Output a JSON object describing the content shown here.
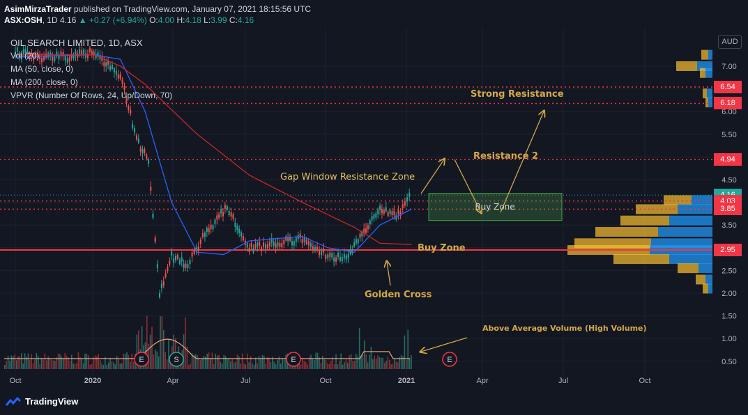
{
  "header": {
    "author": "AsimMirzaTrader",
    "published_text": "published on TradingView.com, January 07, 2021 18:15:56 UTC",
    "symbol": "ASX:OSH",
    "interval": "1D",
    "last": "4.16",
    "change": "+0.27 (+6.94%)",
    "open_label": "O:",
    "open": "4.00",
    "high_label": "H:",
    "high": "4.18",
    "low_label": "L:",
    "low": "3.99",
    "close_label": "C:",
    "close": "4.16"
  },
  "legend": {
    "title": "OIL SEARCH LIMITED, 1D, ASX",
    "vol": "Vol (20)",
    "ma50": "MA (50, close, 0)",
    "ma200": "MA (200, close, 0)",
    "vpvr": "VPVR (Number Of Rows, 24, Up/Down, 70)"
  },
  "currency": "AUD",
  "price_labels": [
    {
      "value": 6.54,
      "text": "6.54",
      "color": "#f23645"
    },
    {
      "value": 6.18,
      "text": "6.18",
      "color": "#f23645"
    },
    {
      "value": 4.94,
      "text": "4.94",
      "color": "#f23645"
    },
    {
      "value": 4.16,
      "text": "4.16",
      "color": "#26a69a"
    },
    {
      "value": 4.03,
      "text": "4.03",
      "color": "#f23645"
    },
    {
      "value": 3.85,
      "text": "3.85",
      "color": "#f23645"
    },
    {
      "value": 2.95,
      "text": "2.95",
      "color": "#f23645"
    }
  ],
  "annotations": {
    "strong_resistance": "Strong Resistance",
    "resistance2": "Resistance 2",
    "gap_zone": "Gap Window Resistance Zone",
    "buy_zone_box": "Buy Zone",
    "buy_zone_line": "Buy Zone",
    "golden_cross": "Golden Cross",
    "high_volume": "Above Average Volume (High Volume)"
  },
  "event_markers": [
    "E",
    "S",
    "E",
    "E"
  ],
  "footer": {
    "brand": "TradingView"
  },
  "chart_data": {
    "type": "line",
    "title": "OIL SEARCH LIMITED, 1D, ASX",
    "x_ticks": [
      "Oct",
      "2020",
      "Apr",
      "Jul",
      "Oct",
      "2021",
      "Apr",
      "Jul",
      "Oct"
    ],
    "y_ticks": [
      0.5,
      1.0,
      1.5,
      2.0,
      2.5,
      3.0,
      3.5,
      4.0,
      4.5,
      5.0,
      5.5,
      6.0,
      6.5,
      7.0
    ],
    "y_tick_labels": [
      "0.50",
      "1.00",
      "1.50",
      "2.00",
      "2.50",
      "3.00",
      "3.50",
      "4.00",
      "4.50",
      "5.00",
      "5.50",
      "6.00",
      "6.50",
      "7.00"
    ],
    "ylim": [
      0.3,
      7.6
    ],
    "grid": true,
    "horizontal_levels": [
      6.54,
      6.18,
      4.94,
      4.03,
      3.85,
      2.95
    ],
    "buy_zone_range": [
      3.6,
      4.2
    ],
    "series": [
      {
        "name": "Close",
        "color": "#d1d4dc",
        "x": [
          "2019-10",
          "2019-11",
          "2019-12",
          "2020-01",
          "2020-02",
          "2020-02-20",
          "2020-03-05",
          "2020-03-18",
          "2020-04-01",
          "2020-04-20",
          "2020-05-10",
          "2020-06-05",
          "2020-07-01",
          "2020-08-01",
          "2020-09-01",
          "2020-10-01",
          "2020-10-25",
          "2020-11-10",
          "2020-12-01",
          "2020-12-20",
          "2021-01-07"
        ],
        "values": [
          7.3,
          7.2,
          7.2,
          7.3,
          6.8,
          5.4,
          4.9,
          2.0,
          2.8,
          2.6,
          3.3,
          3.9,
          3.0,
          3.1,
          3.2,
          2.8,
          2.8,
          3.3,
          3.9,
          3.7,
          4.16
        ]
      },
      {
        "name": "MA 50",
        "color": "#2962ff",
        "x": [
          "2019-10",
          "2020-01",
          "2020-02",
          "2020-03",
          "2020-04",
          "2020-05",
          "2020-06",
          "2020-07",
          "2020-09",
          "2020-10",
          "2020-11",
          "2020-12",
          "2021-01-07"
        ],
        "values": [
          7.2,
          7.25,
          7.15,
          6.0,
          4.0,
          2.9,
          2.85,
          3.15,
          3.25,
          3.0,
          2.9,
          3.5,
          3.85
        ]
      },
      {
        "name": "MA 200",
        "color": "#c62828",
        "x": [
          "2019-10",
          "2020-01",
          "2020-02",
          "2020-03",
          "2020-05",
          "2020-07",
          "2020-09",
          "2020-11",
          "2020-12",
          "2021-01-07"
        ],
        "values": [
          7.25,
          7.25,
          7.0,
          6.6,
          5.5,
          4.6,
          4.0,
          3.45,
          3.1,
          3.07
        ]
      }
    ]
  }
}
